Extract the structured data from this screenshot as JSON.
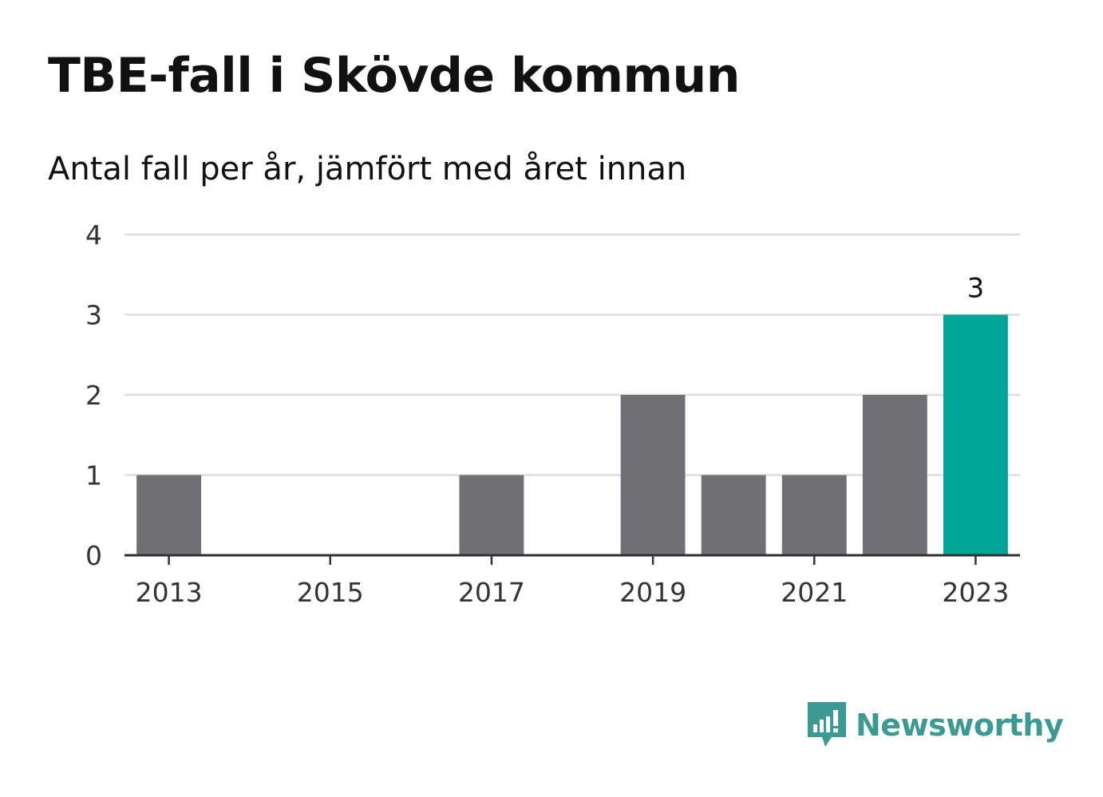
{
  "header": {
    "title": "TBE-fall i Skövde kommun",
    "subtitle": "Antal fall per år, jämfört med året innan"
  },
  "brand": {
    "name": "Newsworthy",
    "icon": "newsworthy-logo-icon"
  },
  "colors": {
    "bar": "#706f75",
    "highlight": "#00a599",
    "grid": "#dddddd",
    "axis": "#333333",
    "brand": "#3d9a92"
  },
  "chart_data": {
    "type": "bar",
    "categories": [
      "2013",
      "2014",
      "2015",
      "2016",
      "2017",
      "2018",
      "2019",
      "2020",
      "2021",
      "2022",
      "2023"
    ],
    "values": [
      1,
      0,
      0,
      0,
      1,
      0,
      2,
      1,
      1,
      2,
      3
    ],
    "highlight_index": 10,
    "xtick_labels": [
      "2013",
      "2015",
      "2017",
      "2019",
      "2021",
      "2023"
    ],
    "ytick_labels": [
      "0",
      "1",
      "2",
      "3",
      "4"
    ],
    "ylim": [
      0,
      4
    ],
    "data_labels": [
      {
        "category": "2023",
        "text": "3"
      }
    ],
    "grid": true,
    "legend": "none"
  }
}
